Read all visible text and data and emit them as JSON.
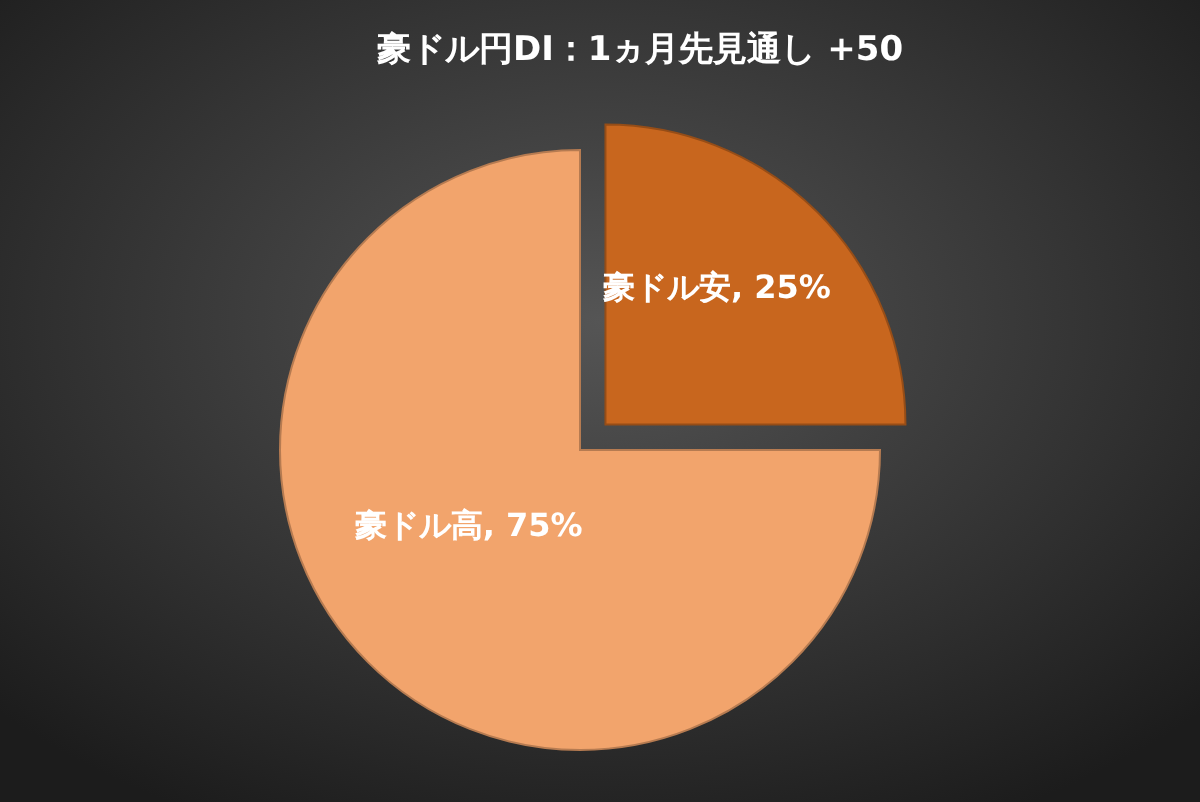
{
  "chart_data": {
    "type": "pie",
    "title": "豪ドル円DI：1ヵ月先見通し +50",
    "categories": [
      "豪ドル安",
      "豪ドル高"
    ],
    "values": [
      25,
      75
    ],
    "value_labels": [
      "25%",
      "75%"
    ],
    "colors": [
      "#c8661e",
      "#f2a46c"
    ]
  }
}
